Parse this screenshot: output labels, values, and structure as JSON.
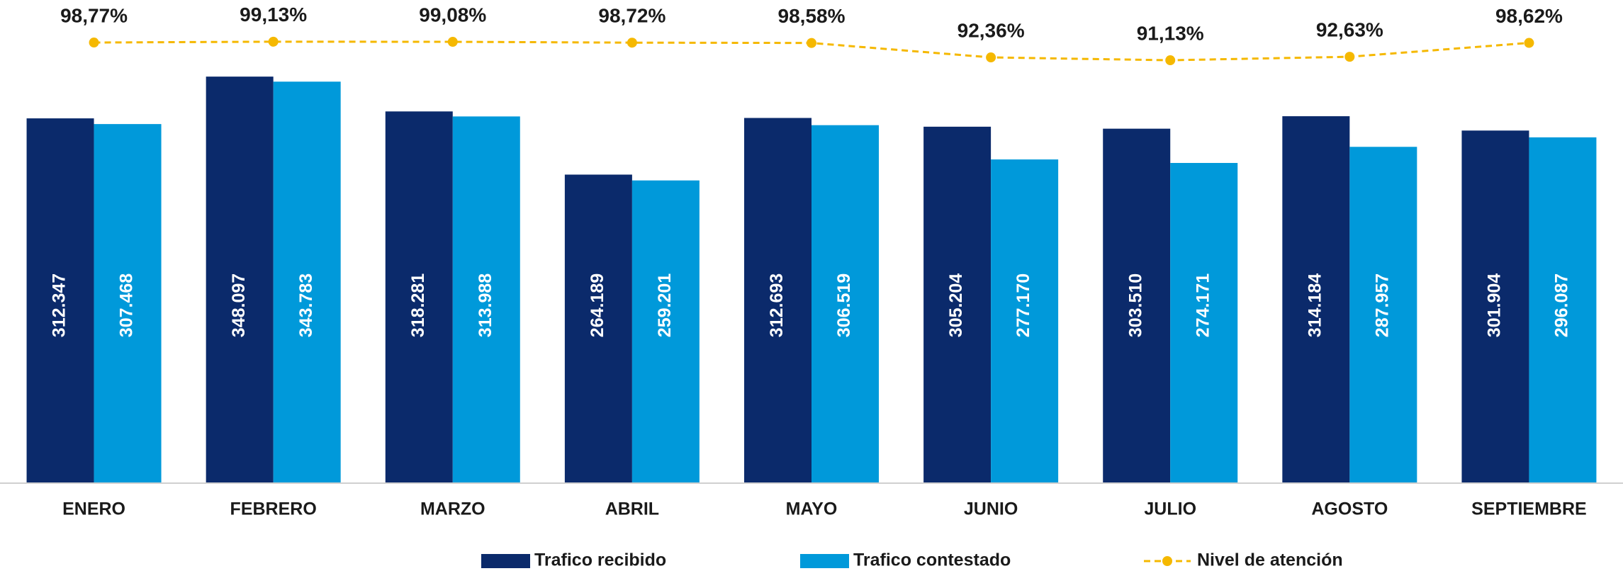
{
  "chart_data": {
    "type": "bar",
    "categories": [
      "ENERO",
      "FEBRERO",
      "MARZO",
      "ABRIL",
      "MAYO",
      "JUNIO",
      "JULIO",
      "AGOSTO",
      "SEPTIEMBRE"
    ],
    "ylim": [
      0,
      350000
    ],
    "y2lim": [
      60,
      100
    ],
    "series": [
      {
        "name": "Trafico recibido",
        "color": "#0b2a6b",
        "values": [
          312347,
          348097,
          318281,
          264189,
          312693,
          305204,
          303510,
          314184,
          301904
        ],
        "value_labels": [
          "312.347",
          "348.097",
          "318.281",
          "264.189",
          "312.693",
          "305.204",
          "303.510",
          "314.184",
          "301.904"
        ]
      },
      {
        "name": "Trafico contestado",
        "color": "#0099da",
        "values": [
          307468,
          343783,
          313988,
          259201,
          306519,
          277170,
          274171,
          287957,
          296087
        ],
        "value_labels": [
          "307.468",
          "343.783",
          "313.988",
          "259.201",
          "306.519",
          "277.170",
          "274.171",
          "287.957",
          "296.087"
        ]
      },
      {
        "name": "Nivel de atención",
        "color": "#f5b800",
        "type": "line",
        "axis": "y2",
        "dashed": true,
        "values": [
          98.77,
          99.13,
          99.08,
          98.72,
          98.58,
          92.36,
          91.13,
          92.63,
          98.62
        ],
        "value_labels": [
          "98,77%",
          "99,13%",
          "99,08%",
          "98,72%",
          "98,58%",
          "92,36%",
          "91,13%",
          "92,63%",
          "98,62%"
        ]
      }
    ]
  }
}
